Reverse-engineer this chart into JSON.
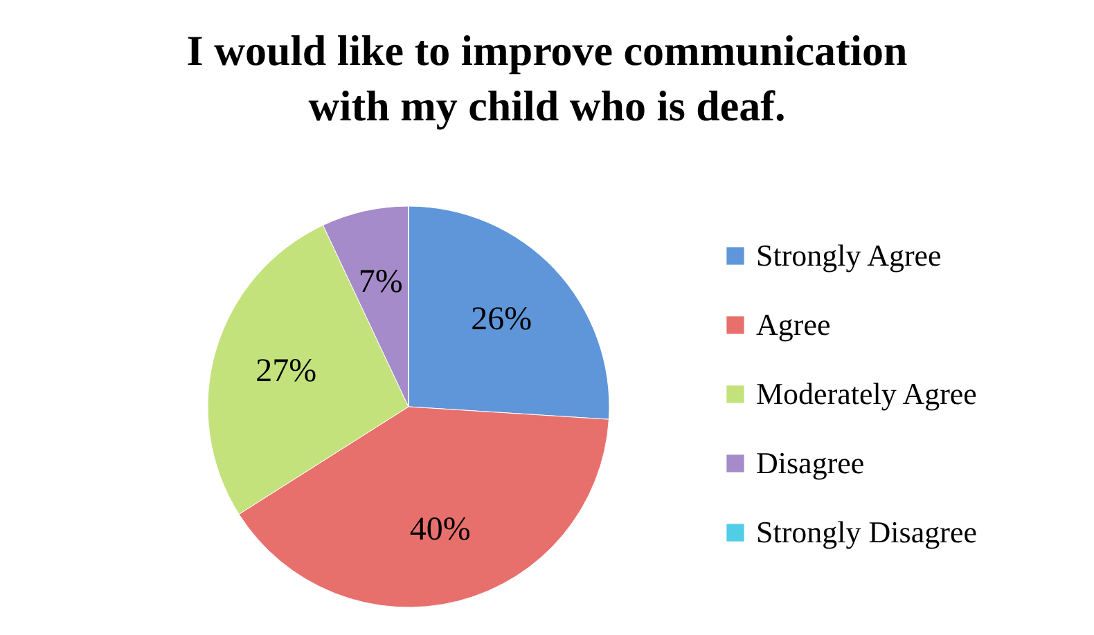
{
  "chart_data": {
    "type": "pie",
    "title": "I would like to improve communication with my child who is deaf.",
    "categories": [
      "Strongly Agree",
      "Agree",
      "Moderately Agree",
      "Disagree",
      "Strongly Disagree"
    ],
    "values": [
      26,
      40,
      27,
      7,
      0
    ],
    "colors": [
      "#5f96d9",
      "#e8706c",
      "#c4e27c",
      "#a58bc9",
      "#52cde6"
    ],
    "value_labels": [
      "26%",
      "40%",
      "27%",
      "7%",
      null
    ],
    "legend": "right"
  }
}
